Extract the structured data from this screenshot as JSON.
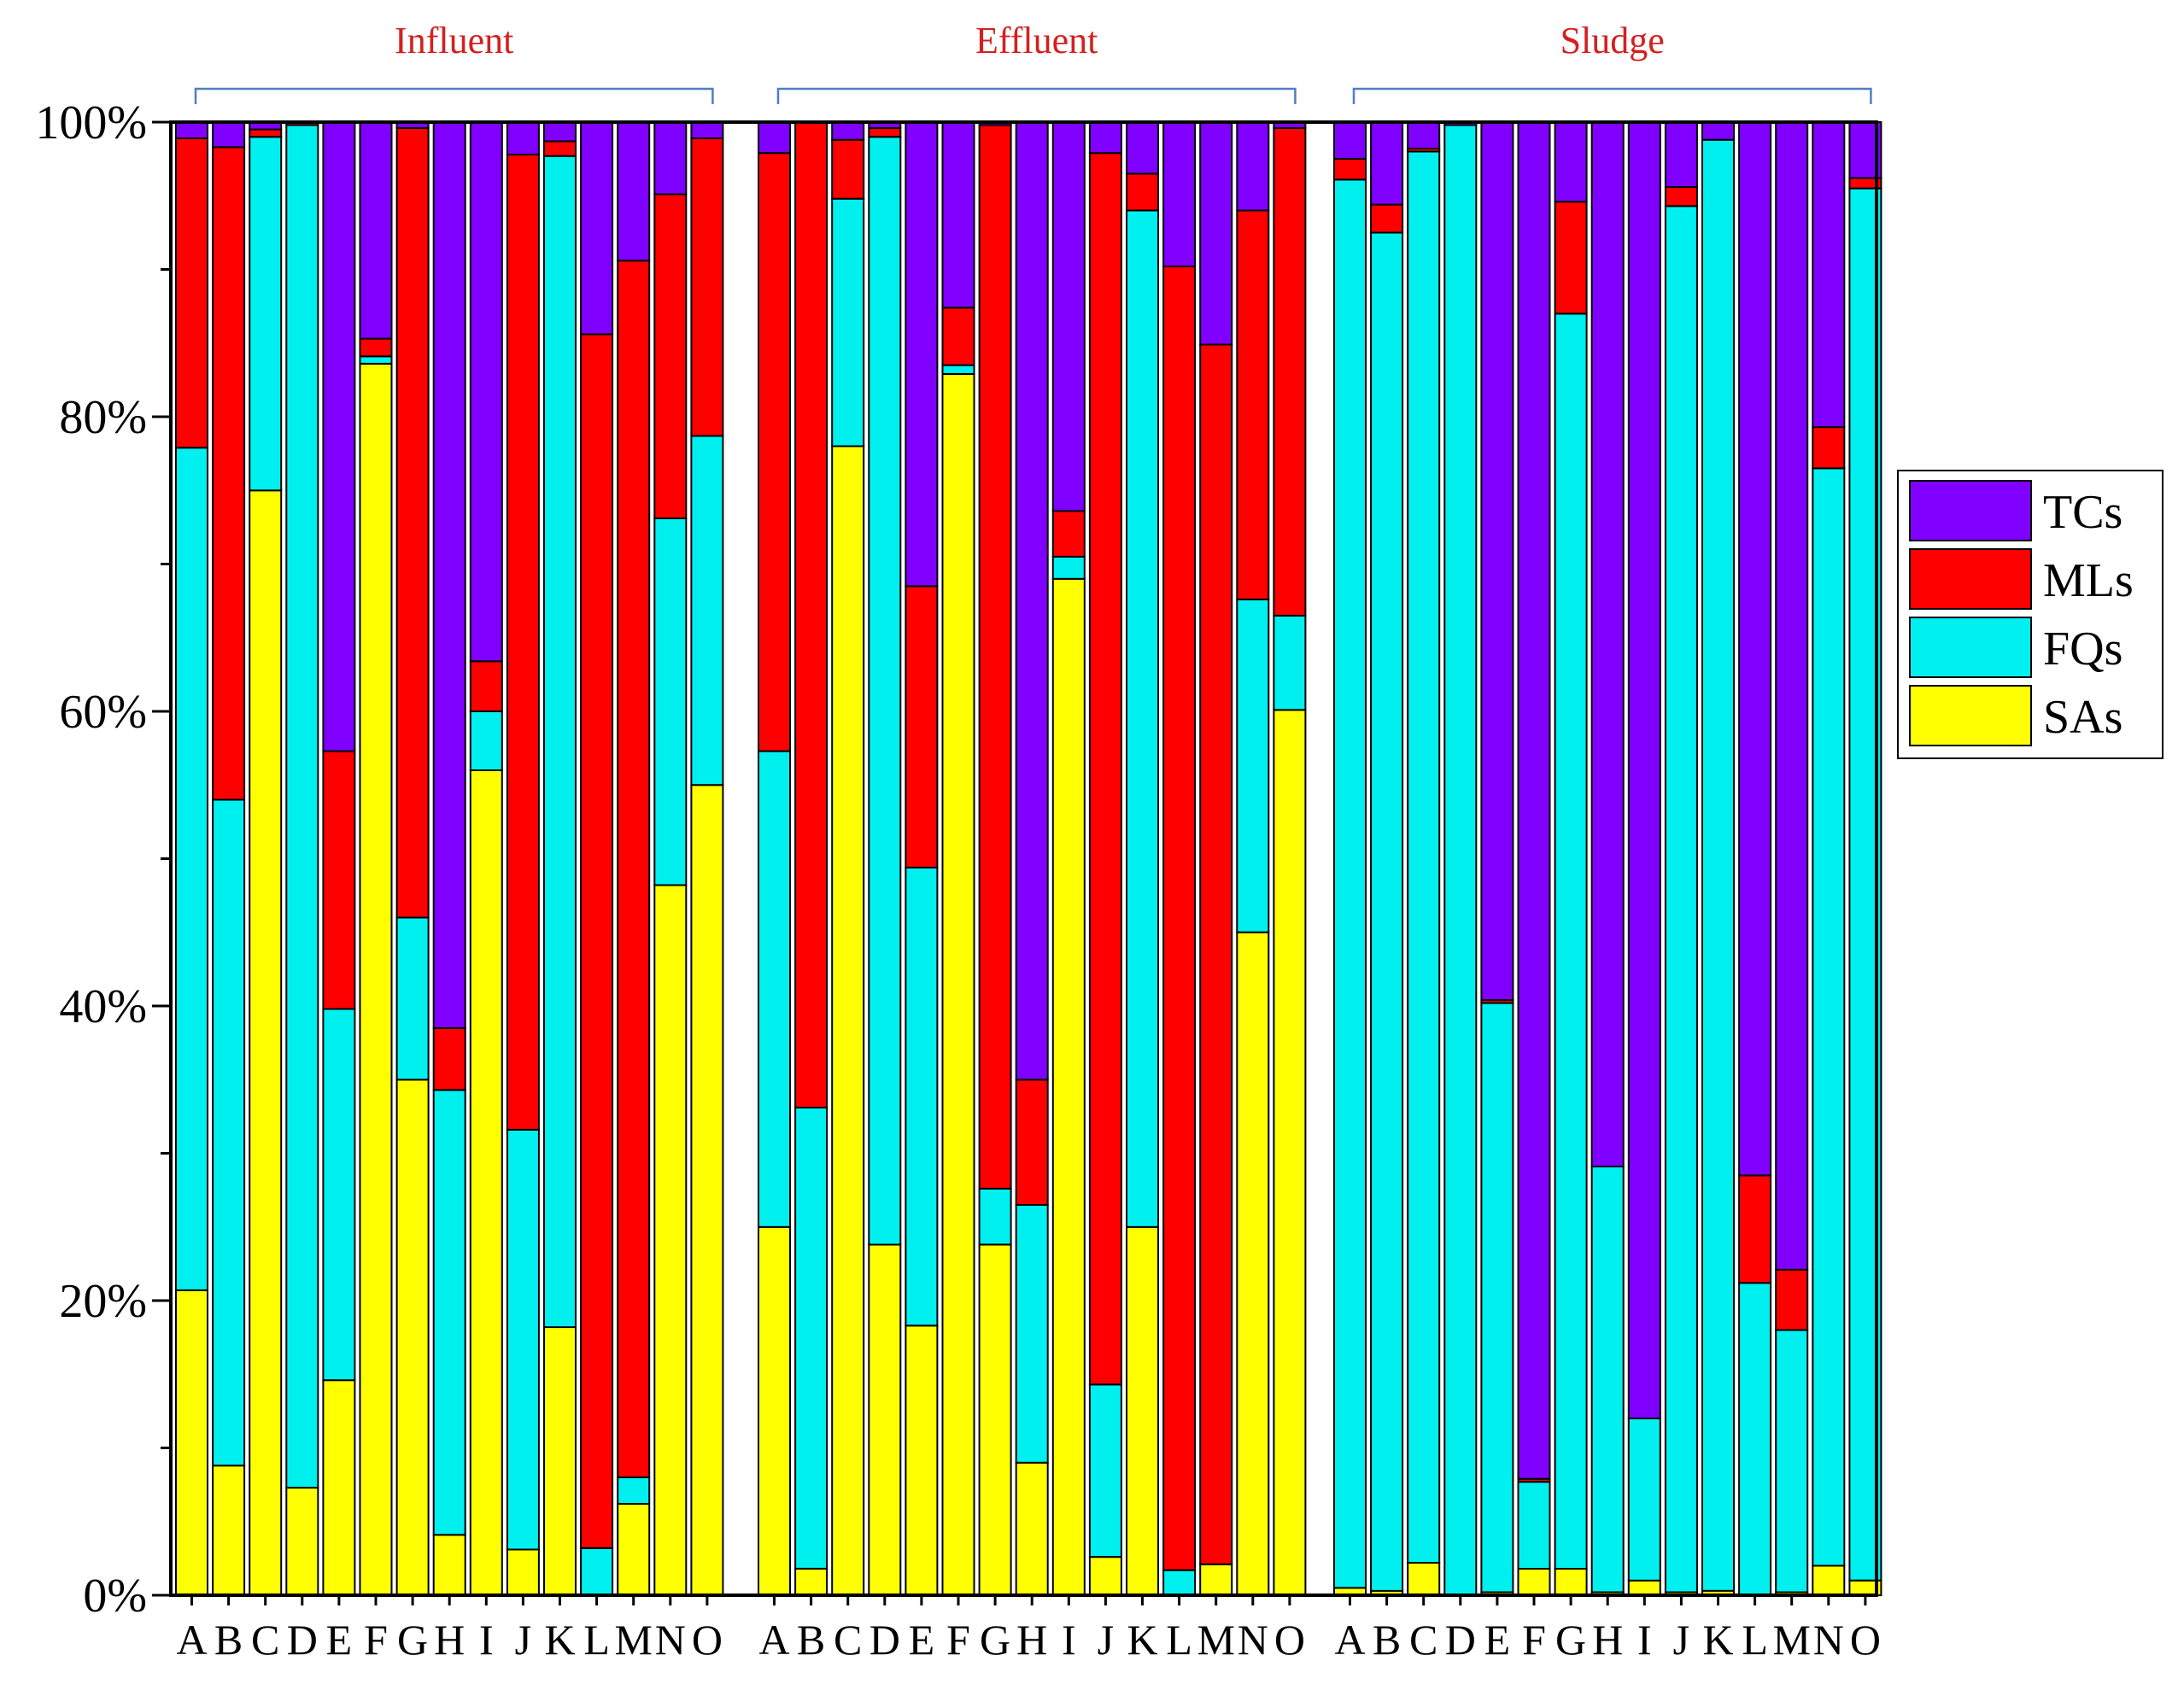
{
  "chart_data": {
    "type": "bar",
    "stacked": true,
    "normalized": true,
    "title": "",
    "xlabel": "",
    "ylabel": "",
    "ylim": [
      0,
      100
    ],
    "yticks": [
      "0%",
      "20%",
      "40%",
      "60%",
      "80%",
      "100%"
    ],
    "categories": [
      "A",
      "B",
      "C",
      "D",
      "E",
      "F",
      "G",
      "H",
      "I",
      "J",
      "K",
      "L",
      "M",
      "N",
      "O"
    ],
    "legend": {
      "position": "right",
      "entries": [
        {
          "name": "TCs",
          "color": "#8000ff"
        },
        {
          "name": "MLs",
          "color": "#ff0000"
        },
        {
          "name": "FQs",
          "color": "#00f0f0"
        },
        {
          "name": "SAs",
          "color": "#ffff00"
        }
      ]
    },
    "stack_order": [
      "SAs",
      "FQs",
      "MLs",
      "TCs"
    ],
    "groups": [
      {
        "name": "Influent",
        "series": {
          "SAs": [
            20.7,
            8.8,
            75.0,
            7.3,
            14.6,
            83.6,
            35.0,
            4.1,
            56.0,
            3.1,
            18.2,
            0.0,
            6.2,
            48.2,
            55.0
          ],
          "FQs": [
            57.2,
            45.2,
            24.0,
            92.5,
            25.2,
            0.5,
            11.0,
            30.2,
            4.0,
            28.5,
            79.5,
            3.2,
            1.8,
            24.9,
            23.7
          ],
          "MLs": [
            21.0,
            44.3,
            0.5,
            0.2,
            17.5,
            1.2,
            53.6,
            4.2,
            3.4,
            66.2,
            1.0,
            82.4,
            82.6,
            22.0,
            20.2
          ],
          "TCs": [
            1.1,
            1.7,
            0.5,
            0.0,
            42.7,
            14.7,
            0.4,
            61.5,
            36.6,
            2.2,
            1.3,
            14.4,
            9.4,
            4.9,
            1.1
          ]
        }
      },
      {
        "name": "Effluent",
        "series": {
          "SAs": [
            25.0,
            1.8,
            78.0,
            23.8,
            18.3,
            82.9,
            23.8,
            9.0,
            69.0,
            2.6,
            25.0,
            0.0,
            2.1,
            45.0,
            60.1
          ],
          "FQs": [
            32.3,
            31.3,
            16.8,
            75.2,
            31.1,
            0.6,
            3.8,
            17.5,
            1.5,
            11.7,
            69.0,
            1.7,
            0.0,
            22.6,
            6.4
          ],
          "MLs": [
            40.6,
            66.9,
            4.0,
            0.6,
            19.1,
            3.9,
            72.2,
            8.5,
            3.1,
            83.6,
            2.5,
            88.5,
            82.8,
            26.4,
            33.1
          ],
          "TCs": [
            2.1,
            0.0,
            1.2,
            0.4,
            31.5,
            12.6,
            0.2,
            65.0,
            26.4,
            2.1,
            3.5,
            9.8,
            15.1,
            6.0,
            0.4
          ]
        }
      },
      {
        "name": "Sludge",
        "series": {
          "SAs": [
            0.5,
            0.3,
            2.2,
            0.0,
            0.2,
            1.8,
            1.8,
            0.2,
            1.0,
            0.2,
            0.3,
            0.0,
            0.2,
            2.0,
            1.0
          ],
          "FQs": [
            95.6,
            92.2,
            95.8,
            99.8,
            40.0,
            5.9,
            85.2,
            28.9,
            11.0,
            94.1,
            98.5,
            21.2,
            17.8,
            74.5,
            94.5
          ],
          "MLs": [
            1.4,
            1.9,
            0.2,
            0.0,
            0.2,
            0.2,
            7.6,
            0.0,
            0.0,
            1.3,
            0.0,
            7.3,
            4.1,
            2.8,
            0.7
          ],
          "TCs": [
            2.5,
            5.6,
            1.8,
            0.2,
            59.6,
            92.1,
            5.4,
            70.9,
            88.0,
            4.4,
            1.2,
            71.5,
            77.9,
            20.7,
            3.8
          ]
        }
      }
    ]
  }
}
